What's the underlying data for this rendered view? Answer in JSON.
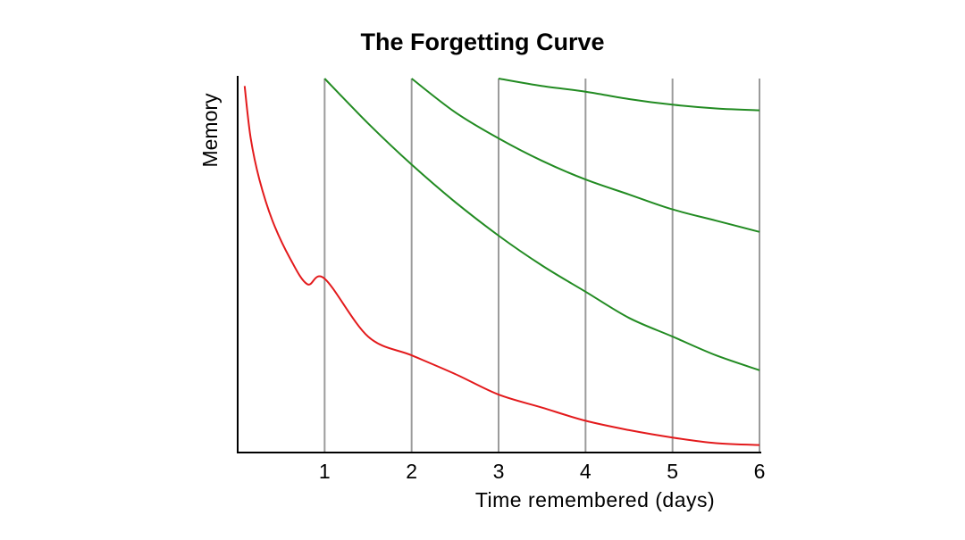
{
  "chart_data": {
    "type": "line",
    "title": "The Forgetting Curve",
    "xlabel": "Time remembered (days)",
    "ylabel": "Memory",
    "xlim": [
      0,
      6
    ],
    "ylim": [
      0,
      1
    ],
    "xticks": [
      "1",
      "2",
      "3",
      "4",
      "5",
      "6"
    ],
    "vertical_gridlines_at": [
      1,
      2,
      3,
      4,
      5,
      6
    ],
    "series": [
      {
        "color": "#e31a1c",
        "x": [
          0.08,
          0.15,
          0.25,
          0.4,
          0.6,
          0.8,
          1,
          1.5,
          2,
          2.5,
          3,
          3.5,
          4,
          4.5,
          5,
          5.5,
          6
        ],
        "y": [
          0.98,
          0.84,
          0.73,
          0.62,
          0.52,
          0.45,
          0.465,
          0.31,
          0.26,
          0.21,
          0.155,
          0.12,
          0.085,
          0.06,
          0.04,
          0.025,
          0.02
        ]
      },
      {
        "color": "#228b22",
        "x": [
          1,
          1.5,
          2,
          2.5,
          3,
          3.5,
          4,
          4.5,
          5,
          5.5,
          6
        ],
        "y": [
          1.0,
          0.88,
          0.77,
          0.67,
          0.58,
          0.5,
          0.43,
          0.36,
          0.31,
          0.26,
          0.22
        ]
      },
      {
        "color": "#228b22",
        "x": [
          2,
          2.5,
          3,
          3.5,
          4,
          4.5,
          5,
          5.5,
          6
        ],
        "y": [
          1.0,
          0.91,
          0.84,
          0.78,
          0.73,
          0.69,
          0.65,
          0.62,
          0.59
        ]
      },
      {
        "color": "#228b22",
        "x": [
          3,
          3.5,
          4,
          4.5,
          5,
          5.5,
          6
        ],
        "y": [
          1.0,
          0.98,
          0.965,
          0.945,
          0.93,
          0.92,
          0.915
        ]
      }
    ]
  }
}
